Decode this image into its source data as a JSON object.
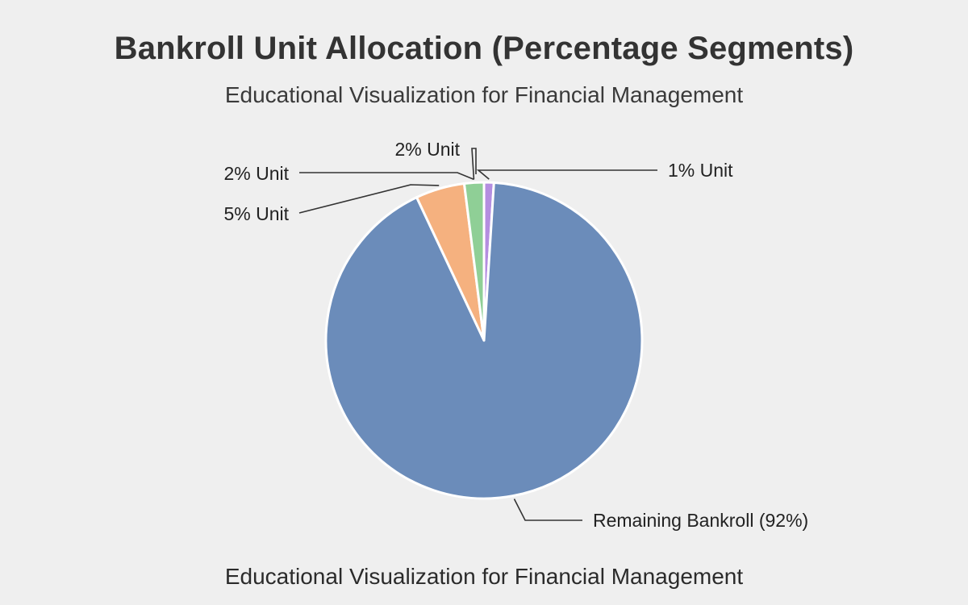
{
  "title": "Bankroll Unit Allocation (Percentage Segments)",
  "subtitle": "Educational Visualization for Financial Management",
  "footer": "Educational Visualization for Financial Management",
  "chart_data": {
    "type": "pie",
    "title": "Bankroll Unit Allocation (Percentage Segments)",
    "subtitle": "Educational Visualization for Financial Management",
    "slices": [
      {
        "label": "1% Unit",
        "value": 1,
        "color": "#b48ee0"
      },
      {
        "label": "Remaining Bankroll (92%)",
        "value": 92,
        "color": "#6b8cba"
      },
      {
        "label": "5% Unit",
        "value": 5,
        "color": "#f5b17f"
      },
      {
        "label": "2% Unit",
        "value": 2,
        "color": "#8fcf96"
      }
    ],
    "start": "12 o'clock",
    "direction": "clockwise"
  }
}
